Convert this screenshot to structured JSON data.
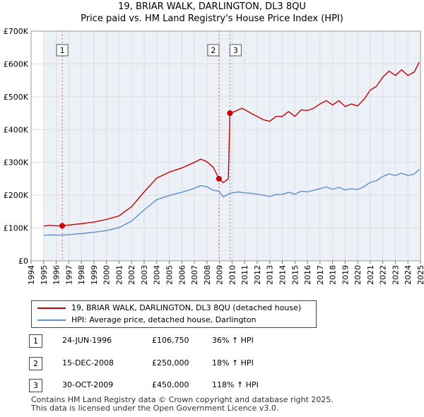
{
  "title_line1": "19, BRIAR WALK, DARLINGTON, DL3 8QU",
  "title_line2": "Price paid vs. HM Land Registry's House Price Index (HPI)",
  "chart_data": {
    "type": "line",
    "xlim": [
      1994,
      2025
    ],
    "ylim": [
      0,
      700000
    ],
    "y_ticks": [
      0,
      100000,
      200000,
      300000,
      400000,
      500000,
      600000,
      700000
    ],
    "y_tick_labels": [
      "£0",
      "£100K",
      "£200K",
      "£300K",
      "£400K",
      "£500K",
      "£600K",
      "£700K"
    ],
    "x_ticks": [
      1994,
      1995,
      1996,
      1997,
      1998,
      1999,
      2000,
      2001,
      2002,
      2003,
      2004,
      2005,
      2006,
      2007,
      2008,
      2009,
      2010,
      2011,
      2012,
      2013,
      2014,
      2015,
      2016,
      2017,
      2018,
      2019,
      2020,
      2021,
      2022,
      2023,
      2024,
      2025
    ],
    "x_tick_labels": [
      "1994",
      "1995",
      "1996",
      "1997",
      "1998",
      "1999",
      "2000",
      "2001",
      "2002",
      "2003",
      "2004",
      "2005",
      "2006",
      "2007",
      "2008",
      "2009",
      "2010",
      "2011",
      "2012",
      "2013",
      "2014",
      "2015",
      "2016",
      "2017",
      "2018",
      "2019",
      "2020",
      "2021",
      "2022",
      "2023",
      "2024",
      "2025"
    ],
    "grid": true,
    "data_range": [
      1995.0,
      2025.0
    ],
    "series": [
      {
        "name": "19, BRIAR WALK, DARLINGTON, DL3 8QU (detached house)",
        "color": "#cc0000",
        "points": [
          [
            1995.0,
            106000
          ],
          [
            1995.5,
            108000
          ],
          [
            1996.0,
            106500
          ],
          [
            1996.48,
            106750
          ],
          [
            1997.0,
            109000
          ],
          [
            1998.0,
            113000
          ],
          [
            1999.0,
            118000
          ],
          [
            2000.0,
            126000
          ],
          [
            2001.0,
            137000
          ],
          [
            2002.0,
            165000
          ],
          [
            2003.0,
            210000
          ],
          [
            2004.0,
            252000
          ],
          [
            2005.0,
            270000
          ],
          [
            2006.0,
            283000
          ],
          [
            2007.0,
            300000
          ],
          [
            2007.5,
            310000
          ],
          [
            2008.0,
            302000
          ],
          [
            2008.5,
            285000
          ],
          [
            2008.96,
            250000
          ],
          [
            2009.3,
            238000
          ],
          [
            2009.7,
            250000
          ],
          [
            2009.83,
            450000
          ],
          [
            2010.2,
            455000
          ],
          [
            2010.8,
            465000
          ],
          [
            2011.5,
            450000
          ],
          [
            2012.5,
            430000
          ],
          [
            2013.0,
            425000
          ],
          [
            2013.5,
            440000
          ],
          [
            2014.0,
            440000
          ],
          [
            2014.5,
            455000
          ],
          [
            2015.0,
            440000
          ],
          [
            2015.5,
            460000
          ],
          [
            2016.0,
            458000
          ],
          [
            2016.5,
            465000
          ],
          [
            2017.0,
            478000
          ],
          [
            2017.5,
            488000
          ],
          [
            2018.0,
            475000
          ],
          [
            2018.5,
            488000
          ],
          [
            2019.0,
            470000
          ],
          [
            2019.5,
            478000
          ],
          [
            2020.0,
            472000
          ],
          [
            2020.5,
            492000
          ],
          [
            2021.0,
            520000
          ],
          [
            2021.5,
            532000
          ],
          [
            2022.0,
            560000
          ],
          [
            2022.5,
            578000
          ],
          [
            2023.0,
            565000
          ],
          [
            2023.5,
            582000
          ],
          [
            2024.0,
            565000
          ],
          [
            2024.5,
            575000
          ],
          [
            2024.9,
            605000
          ]
        ]
      },
      {
        "name": "HPI: Average price, detached house, Darlington",
        "color": "#5b8fd1",
        "points": [
          [
            1995.0,
            78000
          ],
          [
            1995.5,
            79000
          ],
          [
            1996.0,
            78500
          ],
          [
            1996.48,
            78500
          ],
          [
            1997.0,
            80000
          ],
          [
            1998.0,
            83000
          ],
          [
            1999.0,
            87000
          ],
          [
            2000.0,
            92000
          ],
          [
            2001.0,
            101000
          ],
          [
            2002.0,
            121000
          ],
          [
            2003.0,
            155000
          ],
          [
            2004.0,
            186000
          ],
          [
            2005.0,
            199000
          ],
          [
            2006.0,
            209000
          ],
          [
            2007.0,
            221000
          ],
          [
            2007.5,
            229000
          ],
          [
            2008.0,
            226000
          ],
          [
            2008.5,
            215000
          ],
          [
            2008.96,
            212000
          ],
          [
            2009.3,
            195000
          ],
          [
            2009.83,
            206000
          ],
          [
            2010.5,
            210000
          ],
          [
            2011.0,
            207000
          ],
          [
            2011.5,
            206000
          ],
          [
            2012.5,
            200000
          ],
          [
            2013.0,
            196000
          ],
          [
            2013.5,
            202000
          ],
          [
            2014.0,
            202000
          ],
          [
            2014.5,
            209000
          ],
          [
            2015.0,
            203000
          ],
          [
            2015.5,
            212000
          ],
          [
            2016.0,
            210000
          ],
          [
            2016.5,
            215000
          ],
          [
            2017.0,
            220000
          ],
          [
            2017.5,
            225000
          ],
          [
            2018.0,
            218000
          ],
          [
            2018.5,
            224000
          ],
          [
            2019.0,
            216000
          ],
          [
            2019.5,
            220000
          ],
          [
            2020.0,
            217000
          ],
          [
            2020.5,
            226000
          ],
          [
            2021.0,
            239000
          ],
          [
            2021.5,
            244000
          ],
          [
            2022.0,
            257000
          ],
          [
            2022.5,
            265000
          ],
          [
            2023.0,
            260000
          ],
          [
            2023.5,
            267000
          ],
          [
            2024.0,
            260000
          ],
          [
            2024.5,
            264000
          ],
          [
            2024.9,
            278000
          ]
        ]
      }
    ],
    "sales": [
      {
        "label": "1",
        "x": 1996.48,
        "price": 106750
      },
      {
        "label": "2",
        "x": 2008.96,
        "price": 250000
      },
      {
        "label": "3",
        "x": 2009.83,
        "price": 450000
      }
    ]
  },
  "legend": {
    "property_label": "19, BRIAR WALK, DARLINGTON, DL3 8QU (detached house)",
    "hpi_label": "HPI: Average price, detached house, Darlington"
  },
  "transactions": [
    {
      "num": "1",
      "date": "24-JUN-1996",
      "price": "£106,750",
      "hpi": "36% ↑ HPI"
    },
    {
      "num": "2",
      "date": "15-DEC-2008",
      "price": "£250,000",
      "hpi": "18% ↑ HPI"
    },
    {
      "num": "3",
      "date": "30-OCT-2009",
      "price": "£450,000",
      "hpi": "118% ↑ HPI"
    }
  ],
  "footer": {
    "line1": "Contains HM Land Registry data © Crown copyright and database right 2025.",
    "line2": "This data is licensed under the Open Government Licence v3.0."
  }
}
